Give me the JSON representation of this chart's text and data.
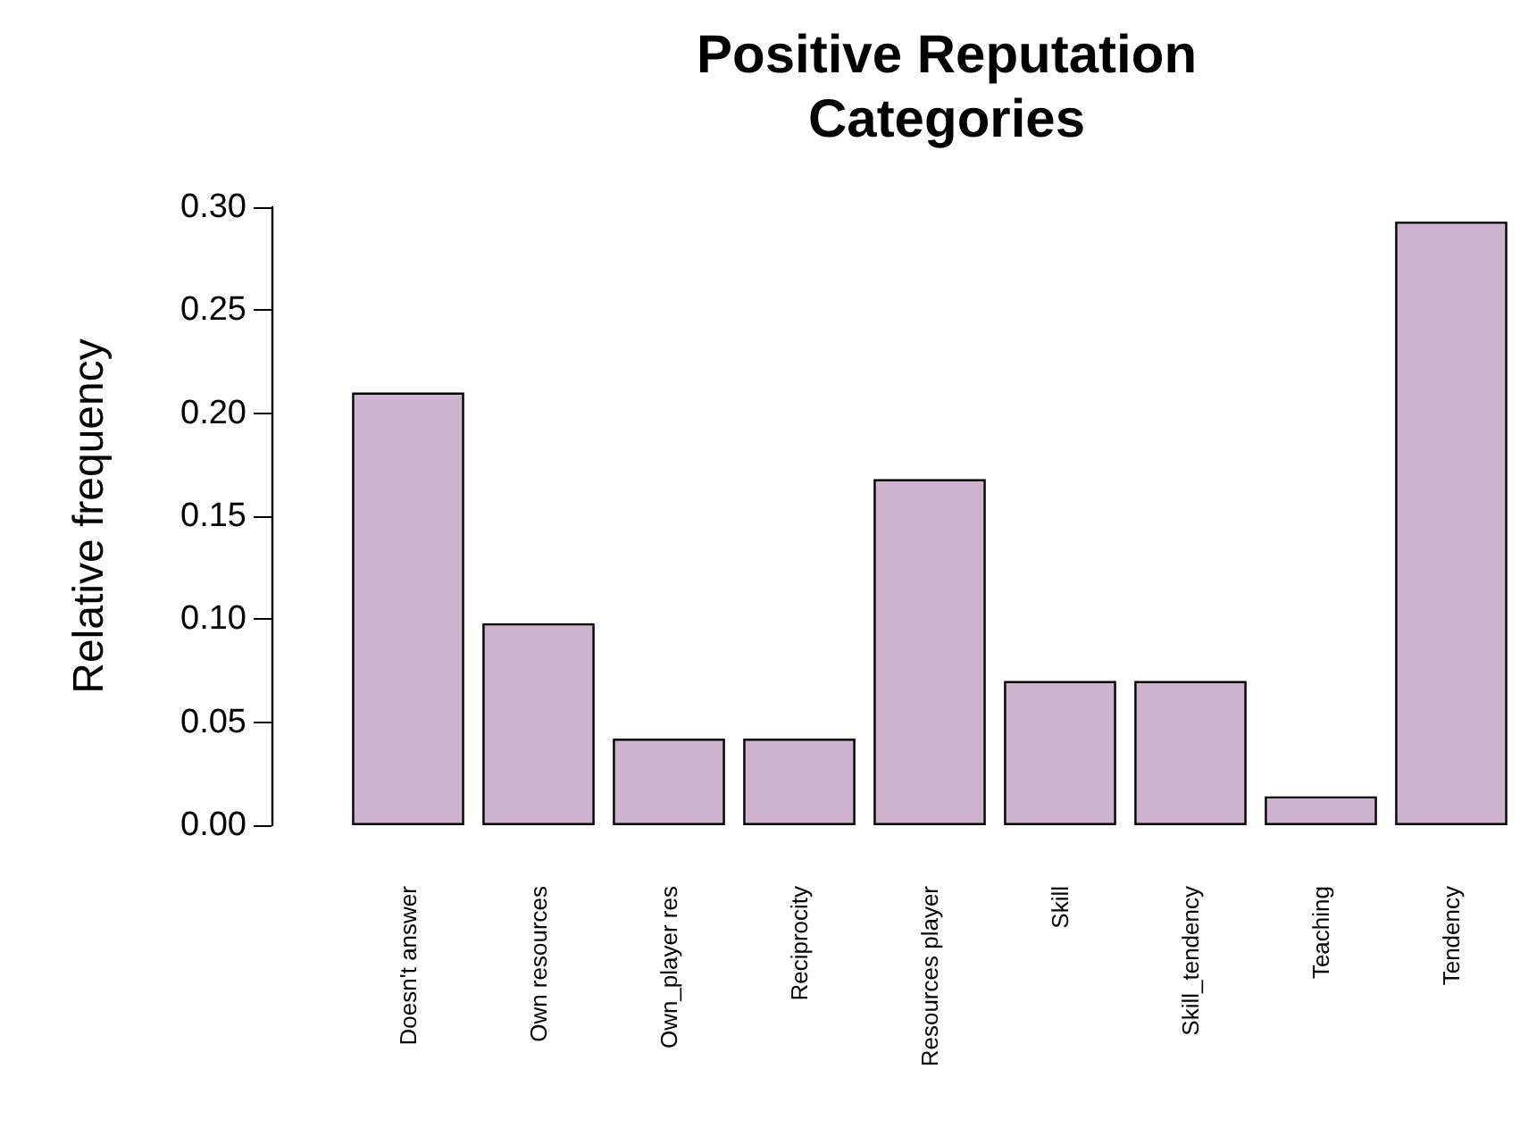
{
  "chart_data": {
    "type": "bar",
    "title": "Positive Reputation\nCategories",
    "ylabel": "Relative frequency",
    "categories": [
      "Doesn't answer",
      "Own resources",
      "Own_player res",
      "Reciprocity",
      "Resources player",
      "Skill",
      "Skill_tendency",
      "Teaching",
      "Tendency"
    ],
    "values": [
      0.21,
      0.098,
      0.042,
      0.042,
      0.168,
      0.07,
      0.07,
      0.014,
      0.293
    ],
    "color": "#cdb3cd",
    "ylim": [
      0,
      0.3
    ],
    "yticks": [
      {
        "value": 0,
        "label": "0.00"
      },
      {
        "value": 0.05,
        "label": "0.05"
      },
      {
        "value": 0.1,
        "label": "0.10"
      },
      {
        "value": 0.15,
        "label": "0.15"
      },
      {
        "value": 0.2,
        "label": "0.20"
      },
      {
        "value": 0.25,
        "label": "0.25"
      },
      {
        "value": 0.3,
        "label": "0.30"
      }
    ],
    "grid": false
  }
}
